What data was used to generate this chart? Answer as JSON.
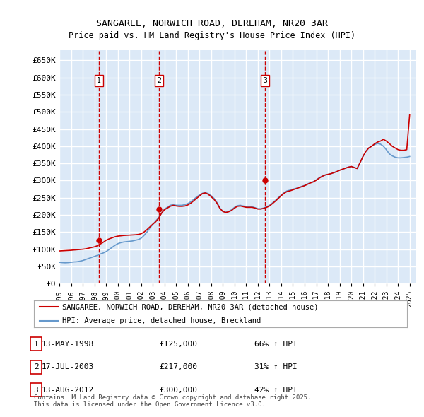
{
  "title": "SANGAREE, NORWICH ROAD, DEREHAM, NR20 3AR",
  "subtitle": "Price paid vs. HM Land Registry's House Price Index (HPI)",
  "ylabel_ticks": [
    0,
    50000,
    100000,
    150000,
    200000,
    250000,
    300000,
    350000,
    400000,
    450000,
    500000,
    550000,
    600000,
    650000
  ],
  "ylim": [
    0,
    680000
  ],
  "xlim_start": 1995.0,
  "xlim_end": 2025.5,
  "background_color": "#dce9f7",
  "plot_bg_color": "#dce9f7",
  "grid_color": "#ffffff",
  "sale_points": [
    {
      "num": 1,
      "year": 1998.37,
      "price": 125000,
      "label": "13-MAY-1998",
      "price_str": "£125,000",
      "hpi_str": "66% ↑ HPI"
    },
    {
      "num": 2,
      "year": 2003.54,
      "price": 217000,
      "label": "17-JUL-2003",
      "price_str": "£217,000",
      "hpi_str": "31% ↑ HPI"
    },
    {
      "num": 3,
      "year": 2012.62,
      "price": 300000,
      "label": "13-AUG-2012",
      "price_str": "£300,000",
      "hpi_str": "42% ↑ HPI"
    }
  ],
  "red_line_color": "#cc0000",
  "blue_line_color": "#6699cc",
  "vline_color": "#cc0000",
  "legend_label_red": "SANGAREE, NORWICH ROAD, DEREHAM, NR20 3AR (detached house)",
  "legend_label_blue": "HPI: Average price, detached house, Breckland",
  "footer_text": "Contains HM Land Registry data © Crown copyright and database right 2025.\nThis data is licensed under the Open Government Licence v3.0.",
  "hpi_data": {
    "years": [
      1995.0,
      1995.25,
      1995.5,
      1995.75,
      1996.0,
      1996.25,
      1996.5,
      1996.75,
      1997.0,
      1997.25,
      1997.5,
      1997.75,
      1998.0,
      1998.25,
      1998.5,
      1998.75,
      1999.0,
      1999.25,
      1999.5,
      1999.75,
      2000.0,
      2000.25,
      2000.5,
      2000.75,
      2001.0,
      2001.25,
      2001.5,
      2001.75,
      2002.0,
      2002.25,
      2002.5,
      2002.75,
      2003.0,
      2003.25,
      2003.5,
      2003.75,
      2004.0,
      2004.25,
      2004.5,
      2004.75,
      2005.0,
      2005.25,
      2005.5,
      2005.75,
      2006.0,
      2006.25,
      2006.5,
      2006.75,
      2007.0,
      2007.25,
      2007.5,
      2007.75,
      2008.0,
      2008.25,
      2008.5,
      2008.75,
      2009.0,
      2009.25,
      2009.5,
      2009.75,
      2010.0,
      2010.25,
      2010.5,
      2010.75,
      2011.0,
      2011.25,
      2011.5,
      2011.75,
      2012.0,
      2012.25,
      2012.5,
      2012.75,
      2013.0,
      2013.25,
      2013.5,
      2013.75,
      2014.0,
      2014.25,
      2014.5,
      2014.75,
      2015.0,
      2015.25,
      2015.5,
      2015.75,
      2016.0,
      2016.25,
      2016.5,
      2016.75,
      2017.0,
      2017.25,
      2017.5,
      2017.75,
      2018.0,
      2018.25,
      2018.5,
      2018.75,
      2019.0,
      2019.25,
      2019.5,
      2019.75,
      2020.0,
      2020.25,
      2020.5,
      2020.75,
      2021.0,
      2021.25,
      2021.5,
      2021.75,
      2022.0,
      2022.25,
      2022.5,
      2022.75,
      2023.0,
      2023.25,
      2023.5,
      2023.75,
      2024.0,
      2024.25,
      2024.5,
      2024.75,
      2025.0
    ],
    "hpi_values": [
      62000,
      61000,
      60500,
      61000,
      62000,
      63000,
      63500,
      65000,
      67000,
      70000,
      73000,
      76000,
      79000,
      82000,
      86000,
      89000,
      93000,
      99000,
      105000,
      111000,
      116000,
      119000,
      121000,
      122000,
      123000,
      124000,
      126000,
      128000,
      132000,
      140000,
      150000,
      162000,
      172000,
      182000,
      192000,
      205000,
      217000,
      222000,
      228000,
      230000,
      228000,
      228000,
      228000,
      230000,
      233000,
      238000,
      245000,
      252000,
      258000,
      263000,
      265000,
      262000,
      256000,
      248000,
      236000,
      220000,
      210000,
      208000,
      210000,
      215000,
      222000,
      227000,
      228000,
      226000,
      224000,
      224000,
      224000,
      221000,
      218000,
      218000,
      220000,
      224000,
      228000,
      235000,
      242000,
      250000,
      258000,
      265000,
      270000,
      272000,
      275000,
      277000,
      280000,
      283000,
      286000,
      290000,
      294000,
      297000,
      302000,
      308000,
      313000,
      316000,
      318000,
      320000,
      323000,
      326000,
      330000,
      333000,
      336000,
      339000,
      341000,
      338000,
      335000,
      352000,
      370000,
      385000,
      395000,
      400000,
      405000,
      408000,
      406000,
      400000,
      390000,
      378000,
      372000,
      368000,
      366000,
      366000,
      367000,
      368000,
      370000
    ],
    "price_values": [
      95000,
      95500,
      96000,
      96500,
      97000,
      97800,
      98500,
      99200,
      100000,
      101000,
      103000,
      105000,
      107000,
      110000,
      115000,
      120000,
      126000,
      130000,
      133000,
      136000,
      138000,
      139000,
      140000,
      140500,
      141000,
      141500,
      142000,
      143000,
      145000,
      150000,
      157000,
      165000,
      173000,
      180000,
      190000,
      205000,
      215000,
      220000,
      225000,
      228000,
      226000,
      225000,
      225000,
      226000,
      229000,
      234000,
      241000,
      248000,
      255000,
      262000,
      264000,
      260000,
      253000,
      245000,
      234000,
      219000,
      210000,
      207000,
      209000,
      213000,
      220000,
      225000,
      226000,
      224000,
      222000,
      222000,
      222000,
      220000,
      217000,
      217000,
      219000,
      222000,
      226000,
      233000,
      240000,
      248000,
      256000,
      263000,
      268000,
      270000,
      273000,
      276000,
      279000,
      282000,
      285000,
      289000,
      293000,
      296000,
      301000,
      307000,
      312000,
      316000,
      318000,
      320000,
      323000,
      326000,
      330000,
      333000,
      336000,
      339000,
      341000,
      338000,
      335000,
      352000,
      370000,
      385000,
      395000,
      400000,
      407000,
      412000,
      415000,
      420000,
      415000,
      408000,
      400000,
      395000,
      390000,
      388000,
      388000,
      390000,
      492000
    ]
  }
}
